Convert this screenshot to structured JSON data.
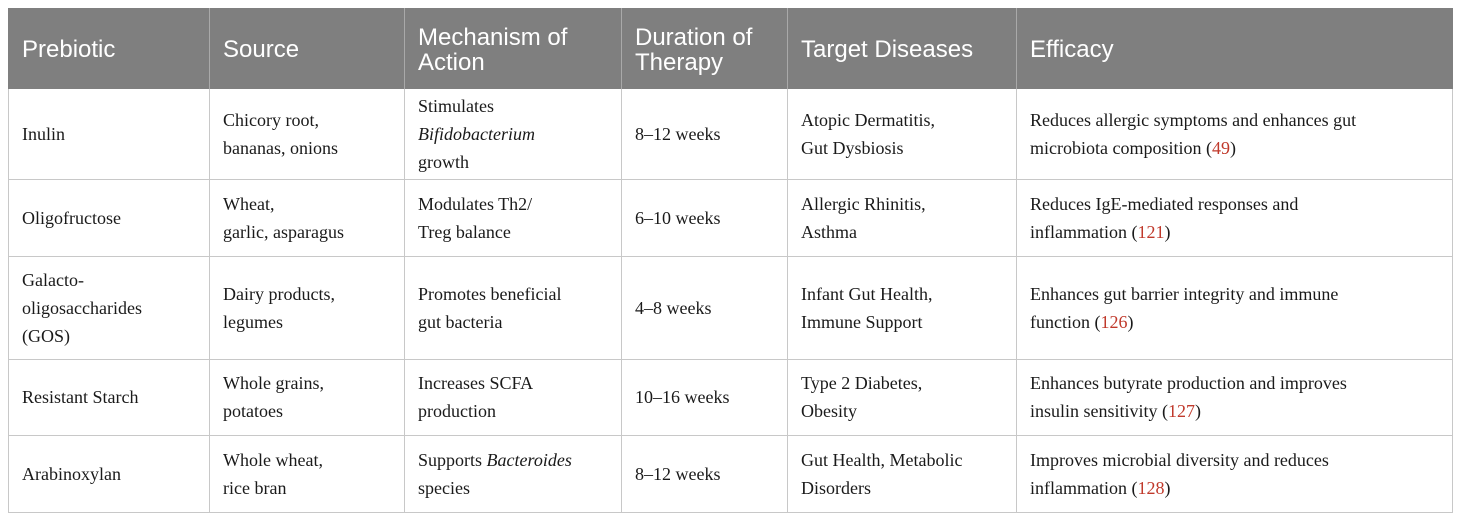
{
  "headers": [
    "Prebiotic",
    "Source",
    "Mechanism of Action",
    "Duration of Therapy",
    "Target Diseases",
    "Efficacy"
  ],
  "rows": [
    {
      "prebiotic": "Inulin",
      "source": [
        "Chicory root,",
        "bananas, onions"
      ],
      "mechanism": {
        "pre": "Stimulates",
        "italic": "Bifidobacterium",
        "post": "growth"
      },
      "duration": "8–12 weeks",
      "targets": [
        "Atopic Dermatitis,",
        "Gut Dysbiosis"
      ],
      "efficacy": {
        "text1": "Reduces allergic symptoms and enhances gut",
        "text2": "microbiota composition (",
        "ref": "49",
        "close": ")"
      }
    },
    {
      "prebiotic": "Oligofructose",
      "source": [
        "Wheat,",
        "garlic, asparagus"
      ],
      "mechanism": {
        "line1": "Modulates Th2/",
        "line2": "Treg balance"
      },
      "duration": "6–10 weeks",
      "targets": [
        "Allergic Rhinitis,",
        "Asthma"
      ],
      "efficacy": {
        "text1": "Reduces IgE-mediated responses and",
        "text2": "inflammation (",
        "ref": "121",
        "close": ")"
      }
    },
    {
      "prebiotic": [
        "Galacto-",
        "oligosaccharides",
        "(GOS)"
      ],
      "source": [
        "Dairy products,",
        "legumes"
      ],
      "mechanism": {
        "line1": "Promotes beneficial",
        "line2": "gut bacteria"
      },
      "duration": "4–8 weeks",
      "targets": [
        "Infant Gut Health,",
        "Immune Support"
      ],
      "efficacy": {
        "text1": "Enhances gut barrier integrity and immune",
        "text2": "function (",
        "ref": "126",
        "close": ")"
      }
    },
    {
      "prebiotic": "Resistant Starch",
      "source": [
        "Whole grains,",
        "potatoes"
      ],
      "mechanism": {
        "line1": "Increases SCFA",
        "line2": "production"
      },
      "duration": "10–16 weeks",
      "targets": [
        "Type 2 Diabetes,",
        "Obesity"
      ],
      "efficacy": {
        "text1": "Enhances butyrate production and improves",
        "text2": "insulin sensitivity (",
        "ref": "127",
        "close": ")"
      }
    },
    {
      "prebiotic": "Arabinoxylan",
      "source": [
        "Whole wheat,",
        "rice bran"
      ],
      "mechanism": {
        "pre": "Supports",
        "italic": "Bacteroides",
        "post": "species"
      },
      "duration": "8–12 weeks",
      "targets": [
        "Gut Health, Metabolic",
        "Disorders"
      ],
      "efficacy": {
        "text1": "Improves microbial diversity and reduces",
        "text2": "inflammation (",
        "ref": "128",
        "close": ")"
      }
    }
  ]
}
